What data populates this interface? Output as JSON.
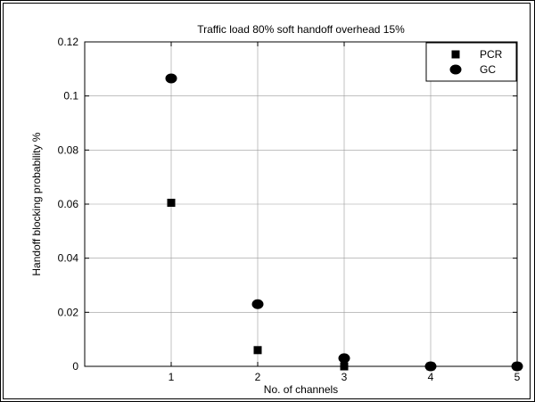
{
  "chart_data": {
    "type": "scatter",
    "title": "Traffic load 80% soft handoff overhead 15%",
    "xlabel": "No. of channels",
    "ylabel": "Handoff blocking probability %",
    "xlim": [
      0,
      5
    ],
    "ylim": [
      0,
      0.12
    ],
    "xticks": [
      "1",
      "2",
      "3",
      "4",
      "5"
    ],
    "yticks": [
      "0",
      "0.02",
      "0.04",
      "0.06",
      "0.08",
      "0.1",
      "0.12"
    ],
    "grid": true,
    "legend_position": "top-right",
    "series": [
      {
        "name": "PCR",
        "marker": "square",
        "x": [
          1,
          2,
          3,
          4,
          5
        ],
        "y": [
          0.0605,
          0.006,
          0.0,
          0.0,
          0.0
        ]
      },
      {
        "name": "GC",
        "marker": "circle",
        "x": [
          1,
          2,
          3,
          4,
          5
        ],
        "y": [
          0.1065,
          0.023,
          0.003,
          0.0,
          0.0
        ]
      }
    ]
  }
}
